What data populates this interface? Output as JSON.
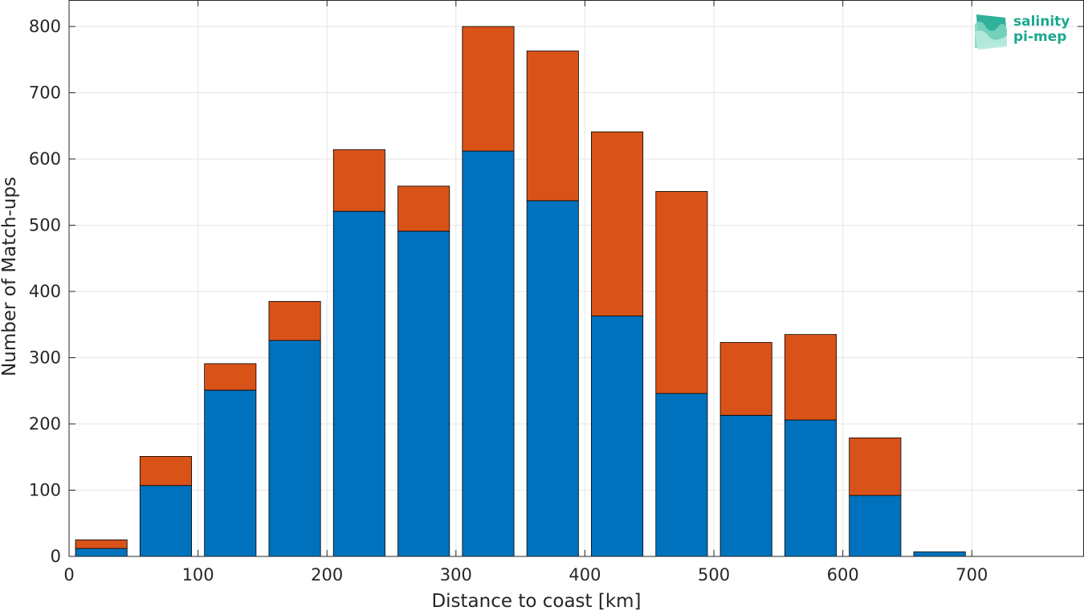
{
  "chart_data": {
    "type": "bar",
    "stacked": true,
    "xlabel": "Distance to coast [km]",
    "ylabel": "Number of Match-ups",
    "xlim": [
      0,
      787
    ],
    "ylim": [
      0,
      840
    ],
    "xticks": [
      0,
      100,
      200,
      300,
      400,
      500,
      600,
      700
    ],
    "yticks": [
      0,
      100,
      200,
      300,
      400,
      500,
      600,
      700,
      800
    ],
    "grid": true,
    "bar_width_km": 40,
    "x": [
      25,
      75,
      125,
      175,
      225,
      275,
      325,
      375,
      425,
      475,
      525,
      575,
      625,
      675,
      725
    ],
    "series": [
      {
        "color": "#0072bd",
        "values": [
          12,
          107,
          251,
          326,
          521,
          491,
          612,
          537,
          363,
          246,
          213,
          206,
          92,
          7,
          0
        ]
      },
      {
        "color": "#d95319",
        "values": [
          13,
          44,
          40,
          59,
          93,
          68,
          188,
          226,
          278,
          305,
          110,
          129,
          87,
          0,
          0
        ]
      }
    ]
  },
  "logo": {
    "line1": "salinity",
    "line2": "pi-mep",
    "color": "#1aa88e"
  }
}
